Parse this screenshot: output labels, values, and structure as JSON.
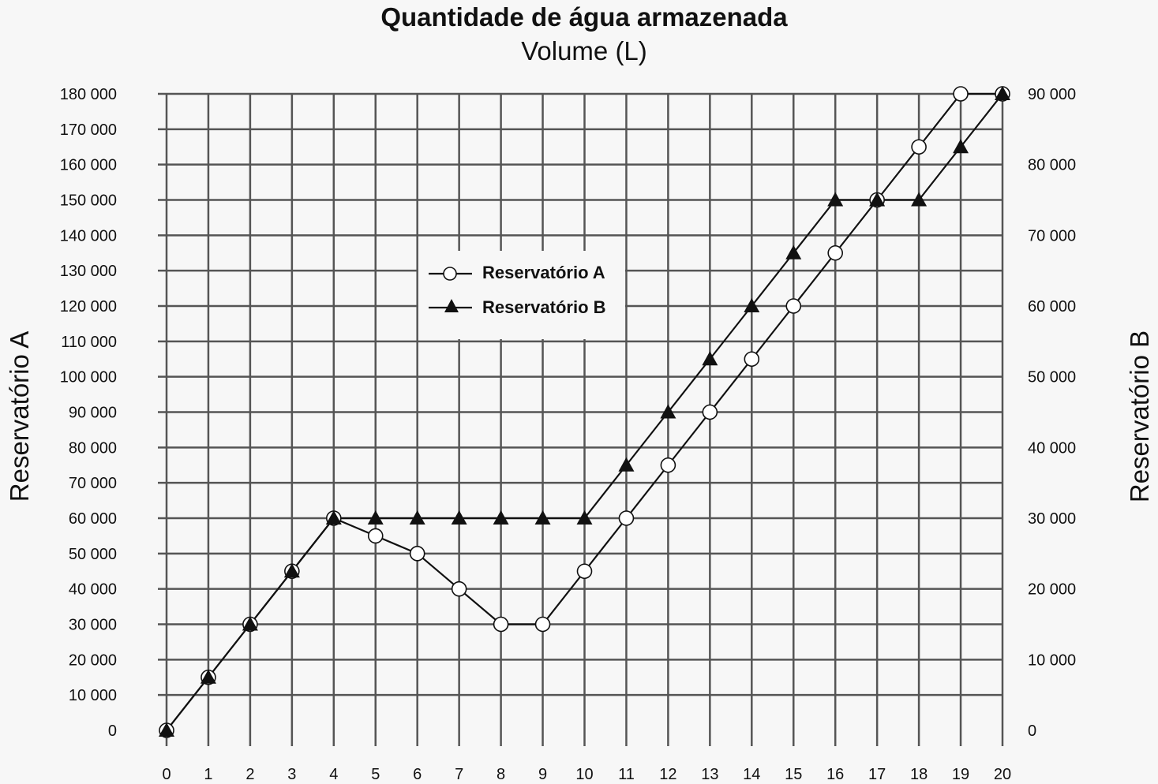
{
  "chart_data": {
    "type": "line",
    "title": "Quantidade de água armazenada",
    "subtitle": "Volume (L)",
    "ylabel_left": "Reservatório A",
    "ylabel_right": "Reservatório B",
    "x": [
      0,
      1,
      2,
      3,
      4,
      5,
      6,
      7,
      8,
      9,
      10,
      11,
      12,
      13,
      14,
      15,
      16,
      17,
      18,
      19,
      20
    ],
    "x_ticks": [
      "0",
      "1",
      "2",
      "3",
      "4",
      "5",
      "6",
      "7",
      "8",
      "9",
      "10",
      "11",
      "12",
      "13",
      "14",
      "15",
      "16",
      "17",
      "18",
      "19",
      "20"
    ],
    "ylim_left": [
      0,
      180000
    ],
    "ylim_right": [
      0,
      90000
    ],
    "y_ticks_left": [
      {
        "value": 0,
        "label": "0"
      },
      {
        "value": 10000,
        "label": "10 000"
      },
      {
        "value": 20000,
        "label": "20 000"
      },
      {
        "value": 30000,
        "label": "30 000"
      },
      {
        "value": 40000,
        "label": "40 000"
      },
      {
        "value": 50000,
        "label": "50 000"
      },
      {
        "value": 60000,
        "label": "60 000"
      },
      {
        "value": 70000,
        "label": "70 000"
      },
      {
        "value": 80000,
        "label": "80 000"
      },
      {
        "value": 90000,
        "label": "90 000"
      },
      {
        "value": 100000,
        "label": "100 000"
      },
      {
        "value": 110000,
        "label": "110 000"
      },
      {
        "value": 120000,
        "label": "120 000"
      },
      {
        "value": 130000,
        "label": "130 000"
      },
      {
        "value": 140000,
        "label": "140 000"
      },
      {
        "value": 150000,
        "label": "150 000"
      },
      {
        "value": 160000,
        "label": "160 000"
      },
      {
        "value": 170000,
        "label": "170 000"
      },
      {
        "value": 180000,
        "label": "180 000"
      }
    ],
    "y_ticks_right": [
      {
        "value": 0,
        "label": "0"
      },
      {
        "value": 10000,
        "label": "10 000"
      },
      {
        "value": 20000,
        "label": "20 000"
      },
      {
        "value": 30000,
        "label": "30 000"
      },
      {
        "value": 40000,
        "label": "40 000"
      },
      {
        "value": 50000,
        "label": "50 000"
      },
      {
        "value": 60000,
        "label": "60 000"
      },
      {
        "value": 70000,
        "label": "70 000"
      },
      {
        "value": 80000,
        "label": "80 000"
      },
      {
        "value": 90000,
        "label": "90 000"
      }
    ],
    "grid": true,
    "legend_position": "center-left",
    "series": [
      {
        "name": "Reservatório A",
        "axis": "left",
        "marker": "open-circle",
        "values": [
          0,
          15000,
          30000,
          45000,
          60000,
          55000,
          50000,
          40000,
          30000,
          30000,
          45000,
          60000,
          75000,
          90000,
          105000,
          120000,
          135000,
          150000,
          165000,
          180000,
          180000
        ]
      },
      {
        "name": "Reservatório B",
        "axis": "right",
        "marker": "filled-triangle",
        "values": [
          0,
          7500,
          15000,
          22500,
          30000,
          30000,
          30000,
          30000,
          30000,
          30000,
          30000,
          37500,
          45000,
          52500,
          60000,
          67500,
          75000,
          75000,
          75000,
          82500,
          90000
        ]
      }
    ]
  }
}
